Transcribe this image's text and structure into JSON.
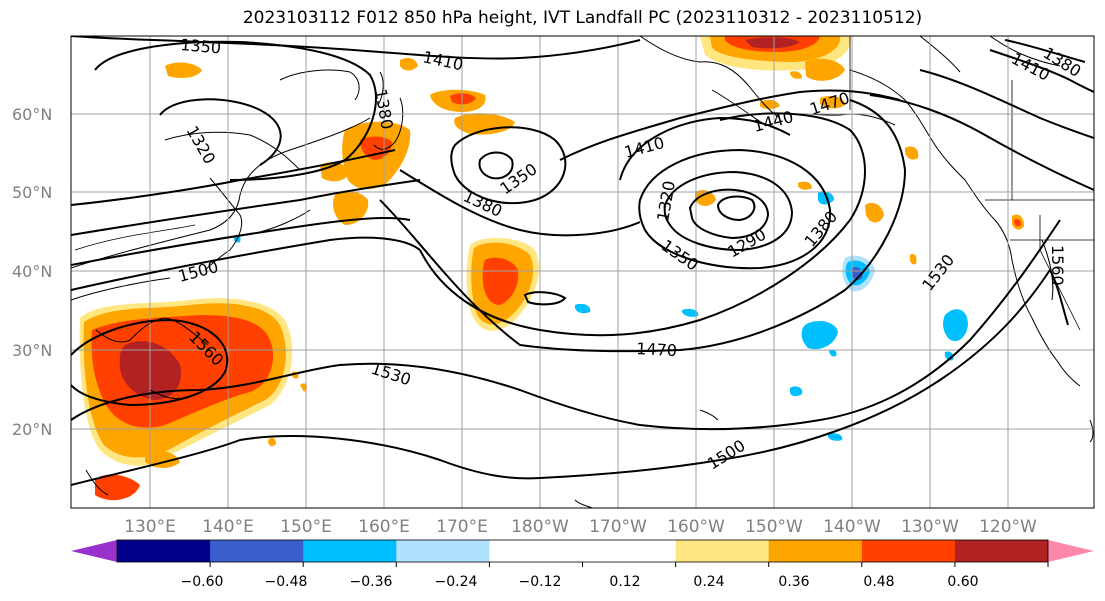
{
  "title": "2023103112 F012 850 hPa height, IVT Landfall PC (2023110312 - 2023110512)",
  "lat_labels": [
    {
      "text": "60°N",
      "lat": 60
    },
    {
      "text": "50°N",
      "lat": 50
    },
    {
      "text": "40°N",
      "lat": 40
    },
    {
      "text": "30°N",
      "lat": 30
    },
    {
      "text": "20°N",
      "lat": 20
    }
  ],
  "lon_labels": [
    {
      "text": "130°E",
      "lon": 130
    },
    {
      "text": "140°E",
      "lon": 140
    },
    {
      "text": "150°E",
      "lon": 150
    },
    {
      "text": "160°E",
      "lon": 160
    },
    {
      "text": "170°E",
      "lon": 170
    },
    {
      "text": "180°W",
      "lon": 180
    },
    {
      "text": "170°W",
      "lon": 190
    },
    {
      "text": "160°W",
      "lon": 200
    },
    {
      "text": "150°W",
      "lon": 210
    },
    {
      "text": "140°W",
      "lon": 220
    },
    {
      "text": "130°W",
      "lon": 230
    },
    {
      "text": "120°W",
      "lon": 240
    }
  ],
  "contour_labels": [
    "1350",
    "1410",
    "1380",
    "1320",
    "1350",
    "1380",
    "1410",
    "1440",
    "1470",
    "1410",
    "1380",
    "1320",
    "1350",
    "1290",
    "1380",
    "1500",
    "1560",
    "1530",
    "1470",
    "1500",
    "1530",
    "1560"
  ],
  "colorbar": {
    "colors": [
      "#9932cc",
      "#00008b",
      "#3a5fcd",
      "#00bfff",
      "#b0e2ff",
      "#ffffff",
      "#ffffff",
      "#ffe680",
      "#ffa500",
      "#ff4000",
      "#b22222",
      "#ff88aa"
    ],
    "ticks": [
      "−0.60",
      "−0.48",
      "−0.36",
      "−0.24",
      "−0.12",
      "0.12",
      "0.24",
      "0.36",
      "0.48",
      "0.60"
    ]
  }
}
